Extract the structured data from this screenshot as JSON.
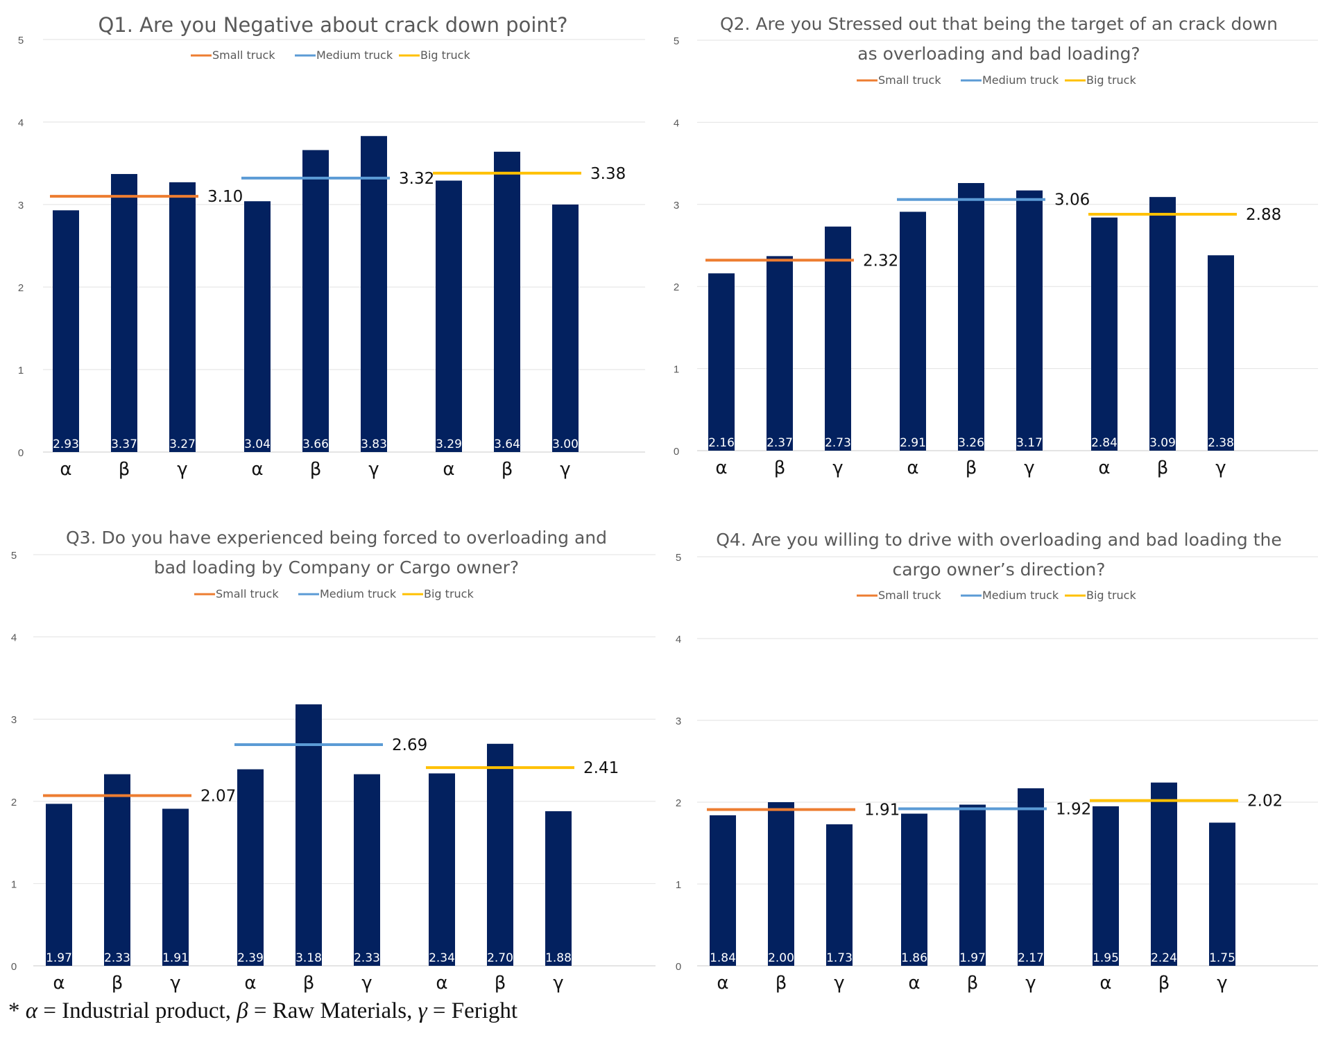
{
  "groups": [
    "Small truck",
    "Medium truck",
    "Big truck"
  ],
  "group_colors": [
    "#ED7D31",
    "#5B9BD5",
    "#FFC000"
  ],
  "bar_color": "#03215F",
  "footnote": {
    "star": "*",
    "alpha": "α",
    "alpha_text": "= Industrial product,",
    "beta": "β",
    "beta_text": "= Raw Materials,",
    "gamma": "γ",
    "gamma_text": "= Feright"
  },
  "chart_data": [
    {
      "type": "bar",
      "title": [
        "Q1. Are you Negative about crack down point?"
      ],
      "ylim": [
        0,
        5
      ],
      "yticks": [
        0,
        1,
        2,
        3,
        4,
        5
      ],
      "grid": true,
      "legend_placement": "top-center",
      "legend": [
        "Small truck",
        "Medium truck",
        "Big truck"
      ],
      "categories": [
        "α",
        "β",
        "γ",
        "α",
        "β",
        "γ",
        "α",
        "β",
        "γ"
      ],
      "values": [
        2.93,
        3.37,
        3.27,
        3.04,
        3.66,
        3.83,
        3.29,
        3.64,
        3.0
      ],
      "value_labels": [
        "2.93",
        "3.37",
        "3.27",
        "3.04",
        "3.66",
        "3.83",
        "3.29",
        "3.64",
        "3.00"
      ],
      "averages": [
        3.1,
        3.32,
        3.38
      ],
      "average_labels": [
        "3.10",
        "3.32",
        "3.38"
      ]
    },
    {
      "type": "bar",
      "title": [
        "Q2. Are you Stressed out that being the target of an crack down",
        "as overloading and bad loading?"
      ],
      "ylim": [
        0,
        5
      ],
      "yticks": [
        0,
        1,
        2,
        3,
        4,
        5
      ],
      "grid": true,
      "legend_placement": "top-center",
      "legend": [
        "Small truck",
        "Medium truck",
        "Big truck"
      ],
      "categories": [
        "α",
        "β",
        "γ",
        "α",
        "β",
        "γ",
        "α",
        "β",
        "γ"
      ],
      "values": [
        2.16,
        2.37,
        2.73,
        2.91,
        3.26,
        3.17,
        2.84,
        3.09,
        2.38
      ],
      "value_labels": [
        "2.16",
        "2.37",
        "2.73",
        "2.91",
        "3.26",
        "3.17",
        "2.84",
        "3.09",
        "2.38"
      ],
      "averages": [
        2.32,
        3.06,
        2.88
      ],
      "average_labels": [
        "2.32",
        "3.06",
        "2.88"
      ]
    },
    {
      "type": "bar",
      "title": [
        "Q3. Do you have experienced being forced to overloading and",
        "bad loading by Company or Cargo owner?"
      ],
      "ylim": [
        0,
        5
      ],
      "yticks": [
        0,
        1,
        2,
        3,
        4,
        5
      ],
      "grid": true,
      "legend_placement": "top-center",
      "legend": [
        "Small truck",
        "Medium truck",
        "Big truck"
      ],
      "categories": [
        "α",
        "β",
        "γ",
        "α",
        "β",
        "γ",
        "α",
        "β",
        "γ"
      ],
      "values": [
        1.97,
        2.33,
        1.91,
        2.39,
        3.18,
        2.33,
        2.34,
        2.7,
        1.88
      ],
      "value_labels": [
        "1.97",
        "2.33",
        "1.91",
        "2.39",
        "3.18",
        "2.33",
        "2.34",
        "2.70",
        "1.88"
      ],
      "averages": [
        2.07,
        2.69,
        2.41
      ],
      "average_labels": [
        "2.07",
        "2.69",
        "2.41"
      ]
    },
    {
      "type": "bar",
      "title": [
        "Q4. Are you willing to drive with overloading and bad loading the",
        "cargo owner’s direction?"
      ],
      "ylim": [
        0,
        5
      ],
      "yticks": [
        0,
        1,
        2,
        3,
        4,
        5
      ],
      "grid": true,
      "legend_placement": "top-center",
      "legend": [
        "Small truck",
        "Medium truck",
        "Big truck"
      ],
      "categories": [
        "α",
        "β",
        "γ",
        "α",
        "β",
        "γ",
        "α",
        "β",
        "γ"
      ],
      "values": [
        1.84,
        2.0,
        1.73,
        1.86,
        1.97,
        2.17,
        1.95,
        2.24,
        1.75
      ],
      "value_labels": [
        "1.84",
        "2.00",
        "1.73",
        "1.86",
        "1.97",
        "2.17",
        "1.95",
        "2.24",
        "1.75"
      ],
      "averages": [
        1.91,
        1.92,
        2.02
      ],
      "average_labels": [
        "1.91",
        "1.92",
        "2.02"
      ]
    }
  ]
}
